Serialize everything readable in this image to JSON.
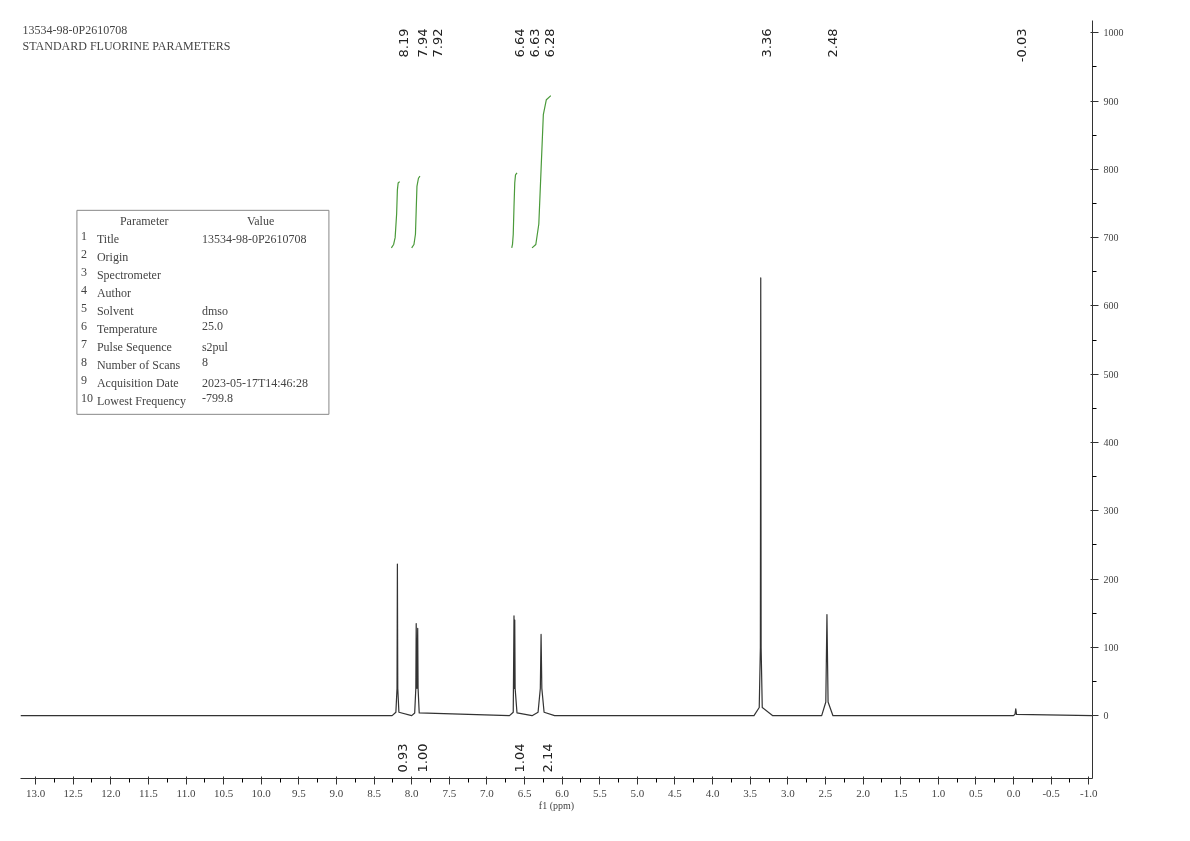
{
  "chart_data": {
    "type": "line",
    "title": "13534-98-0P2610708",
    "subtitle": "STANDARD FLUORINE PARAMETERS",
    "xlabel": "f1 (ppm)",
    "xlim": [
      13.2,
      -1.05
    ],
    "ylim": [
      -92,
      1018
    ],
    "xticks": [
      {
        "value": 13,
        "label": "13.0"
      },
      {
        "value": 12.5,
        "label": "12.5"
      },
      {
        "value": 12,
        "label": "12.0"
      },
      {
        "value": 11.5,
        "label": "11.5"
      },
      {
        "value": 11,
        "label": "11.0"
      },
      {
        "value": 10.5,
        "label": "10.5"
      },
      {
        "value": 10,
        "label": "10.0"
      },
      {
        "value": 9.5,
        "label": "9.5"
      },
      {
        "value": 9,
        "label": "9.0"
      },
      {
        "value": 8.5,
        "label": "8.5"
      },
      {
        "value": 8,
        "label": "8.0"
      },
      {
        "value": 7.5,
        "label": "7.5"
      },
      {
        "value": 7,
        "label": "7.0"
      },
      {
        "value": 6.5,
        "label": "6.5"
      },
      {
        "value": 6,
        "label": "6.0"
      },
      {
        "value": 5.5,
        "label": "5.5"
      },
      {
        "value": 5,
        "label": "5.0"
      },
      {
        "value": 4.5,
        "label": "4.5"
      },
      {
        "value": 4,
        "label": "4.0"
      },
      {
        "value": 3.5,
        "label": "3.5"
      },
      {
        "value": 3,
        "label": "3.0"
      },
      {
        "value": 2.5,
        "label": "2.5"
      },
      {
        "value": 2,
        "label": "2.0"
      },
      {
        "value": 1.5,
        "label": "1.5"
      },
      {
        "value": 1,
        "label": "1.0"
      },
      {
        "value": 0.5,
        "label": "0.5"
      },
      {
        "value": 0,
        "label": "0.0"
      },
      {
        "value": -0.5,
        "label": "-0.5"
      },
      {
        "value": -1,
        "label": "-1.0"
      }
    ],
    "yticks": [
      0,
      100,
      200,
      300,
      400,
      500,
      600,
      700,
      800,
      900,
      1000
    ],
    "grid": false,
    "marker": "none",
    "line_style": "solid",
    "series": [
      {
        "color": "#333333",
        "x": [
          13.2,
          8.26,
          8.21,
          8.195,
          8.19,
          8.185,
          8.17,
          8.0,
          7.96,
          7.945,
          7.94,
          7.93,
          7.92,
          7.915,
          7.9,
          6.7,
          6.65,
          6.64,
          6.635,
          6.63,
          6.625,
          6.6,
          6.4,
          6.32,
          6.29,
          6.28,
          6.27,
          6.24,
          6.1,
          3.45,
          3.38,
          3.365,
          3.36,
          3.355,
          3.34,
          3.2,
          2.55,
          2.495,
          2.48,
          2.465,
          2.4,
          0.0,
          -0.02,
          -0.03,
          -0.04,
          -1.05
        ],
        "values": [
          0,
          0,
          5,
          40,
          222,
          40,
          5,
          0,
          4,
          40,
          135,
          40,
          128,
          40,
          4,
          0,
          5,
          146,
          40,
          140,
          40,
          4,
          0,
          5,
          40,
          119,
          40,
          5,
          0,
          0,
          12,
          100,
          641,
          100,
          12,
          0,
          0,
          20,
          148,
          20,
          0,
          0,
          2,
          10,
          2,
          0
        ]
      },
      {
        "color": "#4a9a3a",
        "x": [
          8.27,
          8.24,
          8.22,
          8.2,
          8.19,
          8.18,
          8.16
        ],
        "values": [
          685,
          690,
          700,
          735,
          770,
          780,
          782
        ]
      },
      {
        "color": "#4a9a3a",
        "x": [
          8.0,
          7.97,
          7.95,
          7.94,
          7.93,
          7.91,
          7.89
        ],
        "values": [
          685,
          690,
          705,
          740,
          775,
          787,
          790
        ]
      },
      {
        "color": "#4a9a3a",
        "x": [
          6.67,
          6.66,
          6.65,
          6.64,
          6.63,
          6.62,
          6.6
        ],
        "values": [
          685,
          690,
          705,
          745,
          780,
          792,
          795
        ]
      },
      {
        "color": "#4a9a3a",
        "x": [
          6.4,
          6.35,
          6.31,
          6.28,
          6.25,
          6.21,
          6.15
        ],
        "values": [
          685,
          690,
          720,
          800,
          880,
          902,
          908
        ]
      }
    ],
    "annotations": [
      "8.19",
      "7.94",
      "7.92",
      "6.64",
      "6.63",
      "6.28",
      "3.36",
      "2.48",
      "-0.03",
      "0.93",
      "1.00",
      "1.04",
      "2.14",
      "Parameter\tValue",
      "1\tTitle\t13534-98-0P2610708",
      "2\tOrigin",
      "3\tSpectrometer",
      "4\tAuthor",
      "5\tSolvent\tdmso",
      "6\tTemperature\t25.0",
      "7\tPulse Sequence\ts2pul",
      "8\tNumber of Scans\t8",
      "9\tAcquisition Date\t2023-05-17T14:46:28",
      "10\tLowest Frequency\t-799.8"
    ]
  }
}
